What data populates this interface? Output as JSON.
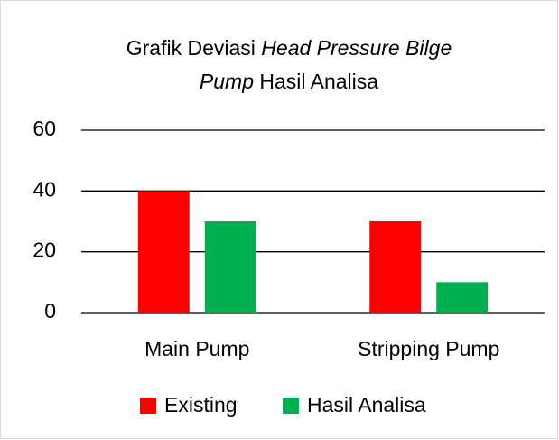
{
  "chart_data": {
    "type": "bar",
    "title": [
      [
        {
          "text": "Grafik Deviasi",
          "italic": false
        },
        {
          "text": "Head Pressure Bilge",
          "italic": true
        }
      ],
      [
        {
          "text": "Pump",
          "italic": true
        },
        {
          "text": "Hasil Analisa",
          "italic": false
        }
      ]
    ],
    "categories": [
      "Main Pump",
      "Stripping Pump"
    ],
    "series": [
      {
        "name": "Existing",
        "color": "#ff0000",
        "values": [
          40,
          30
        ]
      },
      {
        "name": "Hasil Analisa",
        "color": "#00b050",
        "values": [
          30,
          10
        ]
      }
    ],
    "ylim": [
      0,
      60
    ],
    "yticks": [
      0,
      20,
      40,
      60
    ],
    "grid": true,
    "legend": "bottom"
  }
}
